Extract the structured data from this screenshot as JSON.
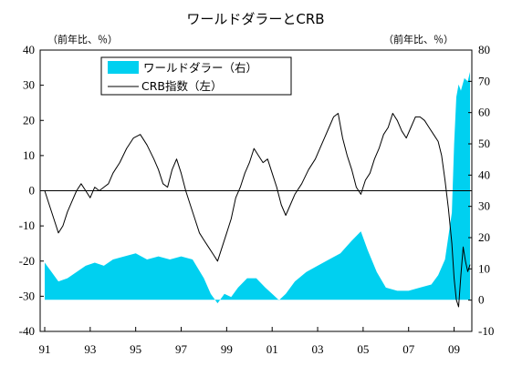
{
  "chart_data": {
    "type": "area",
    "title": "ワールドダラーとCRB",
    "left_unit": "（前年比、％）",
    "right_unit": "（前年比、％）",
    "x_ticks": [
      "91",
      "93",
      "95",
      "97",
      "99",
      "01",
      "03",
      "05",
      "07",
      "09"
    ],
    "x_range": [
      1991,
      2009.7
    ],
    "ylim_left": [
      -40,
      40
    ],
    "ylim_right": [
      -10,
      80
    ],
    "yticks_left": [
      "40",
      "30",
      "20",
      "10",
      "0",
      "-10",
      "-20",
      "-30",
      "-40"
    ],
    "yticks_right": [
      "80",
      "70",
      "60",
      "50",
      "40",
      "30",
      "20",
      "10",
      "0",
      "-10"
    ],
    "zero_line": "left-axis 0",
    "legend_position": "top-left",
    "colors": {
      "world_dollar": "#00d0f0",
      "crb": "#000000"
    },
    "series": [
      {
        "name": "ワールドダラー（右）",
        "axis": "right",
        "style": "area",
        "x": [
          1991.0,
          1991.3,
          1991.6,
          1992.0,
          1992.4,
          1992.8,
          1993.2,
          1993.6,
          1994.0,
          1994.5,
          1995.0,
          1995.5,
          1996.0,
          1996.5,
          1997.0,
          1997.5,
          1998.0,
          1998.3,
          1998.6,
          1998.9,
          1999.2,
          1999.5,
          1999.9,
          2000.3,
          2000.7,
          2001.0,
          2001.3,
          2001.6,
          2002.0,
          2002.5,
          2003.0,
          2003.5,
          2004.0,
          2004.5,
          2004.9,
          2005.2,
          2005.6,
          2006.0,
          2006.5,
          2007.0,
          2007.5,
          2008.0,
          2008.3,
          2008.6,
          2008.9,
          2009.0,
          2009.1,
          2009.2,
          2009.3,
          2009.45,
          2009.6,
          2009.7
        ],
        "values": [
          12,
          9,
          6,
          7,
          9,
          11,
          12,
          11,
          13,
          14,
          15,
          13,
          14,
          13,
          14,
          13,
          7,
          2,
          -1,
          2,
          1,
          4,
          7,
          7,
          4,
          2,
          0,
          2,
          6,
          9,
          11,
          13,
          15,
          19,
          22,
          16,
          9,
          4,
          3,
          3,
          4,
          5,
          8,
          13,
          28,
          50,
          65,
          69,
          67,
          71,
          70,
          73
        ]
      },
      {
        "name": "CRB指数（左）",
        "axis": "left",
        "style": "line",
        "x": [
          1991.0,
          1991.2,
          1991.4,
          1991.6,
          1991.8,
          1992.0,
          1992.2,
          1992.4,
          1992.6,
          1992.8,
          1993.0,
          1993.2,
          1993.4,
          1993.6,
          1993.8,
          1994.0,
          1994.3,
          1994.6,
          1994.9,
          1995.2,
          1995.5,
          1995.8,
          1996.0,
          1996.2,
          1996.4,
          1996.6,
          1996.8,
          1997.0,
          1997.2,
          1997.4,
          1997.6,
          1997.8,
          1998.0,
          1998.2,
          1998.4,
          1998.6,
          1998.8,
          1999.0,
          1999.2,
          1999.4,
          1999.6,
          1999.8,
          2000.0,
          2000.2,
          2000.4,
          2000.6,
          2000.8,
          2001.0,
          2001.2,
          2001.4,
          2001.6,
          2001.8,
          2002.0,
          2002.3,
          2002.6,
          2002.9,
          2003.1,
          2003.3,
          2003.5,
          2003.7,
          2003.9,
          2004.1,
          2004.3,
          2004.5,
          2004.7,
          2004.9,
          2005.1,
          2005.3,
          2005.5,
          2005.7,
          2005.9,
          2006.1,
          2006.3,
          2006.5,
          2006.7,
          2006.9,
          2007.1,
          2007.3,
          2007.5,
          2007.7,
          2007.9,
          2008.1,
          2008.3,
          2008.45,
          2008.6,
          2008.75,
          2008.9,
          2009.0,
          2009.1,
          2009.2,
          2009.3,
          2009.4,
          2009.5,
          2009.6,
          2009.7
        ],
        "values": [
          0,
          -4,
          -8,
          -12,
          -10,
          -6,
          -3,
          0,
          2,
          0,
          -2,
          1,
          0,
          1,
          2,
          5,
          8,
          12,
          15,
          16,
          13,
          9,
          6,
          2,
          1,
          6,
          9,
          5,
          0,
          -4,
          -8,
          -12,
          -14,
          -16,
          -18,
          -20,
          -16,
          -12,
          -8,
          -2,
          1,
          5,
          8,
          12,
          10,
          8,
          9,
          5,
          1,
          -4,
          -7,
          -4,
          -1,
          2,
          6,
          9,
          12,
          15,
          18,
          21,
          22,
          15,
          10,
          6,
          1,
          -1,
          3,
          5,
          9,
          12,
          16,
          18,
          22,
          20,
          17,
          15,
          18,
          21,
          21,
          20,
          18,
          16,
          14,
          10,
          3,
          -5,
          -15,
          -25,
          -31,
          -33,
          -24,
          -16,
          -20,
          -23,
          -21
        ]
      }
    ]
  }
}
